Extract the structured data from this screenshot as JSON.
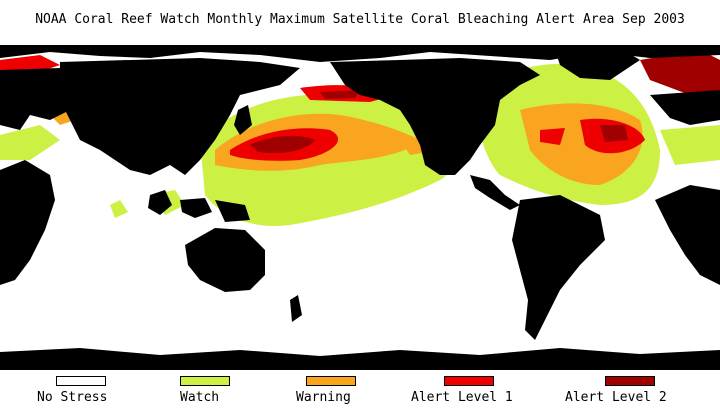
{
  "title": "NOAA Coral Reef Watch Monthly Maximum Satellite Coral Bleaching Alert Area   Sep 2003",
  "colors": {
    "land": "#000000",
    "no_stress": "#ffffff",
    "watch": "#ccf043",
    "warning": "#f9a51f",
    "alert1": "#ee0000",
    "alert2": "#a00000"
  },
  "legend": [
    {
      "label": "No Stress",
      "color": "#ffffff"
    },
    {
      "label": "Watch",
      "color": "#ccf043"
    },
    {
      "label": "Warning",
      "color": "#f9a51f"
    },
    {
      "label": "Alert Level 1",
      "color": "#ee0000"
    },
    {
      "label": "Alert Level 2",
      "color": "#a00000"
    }
  ]
}
